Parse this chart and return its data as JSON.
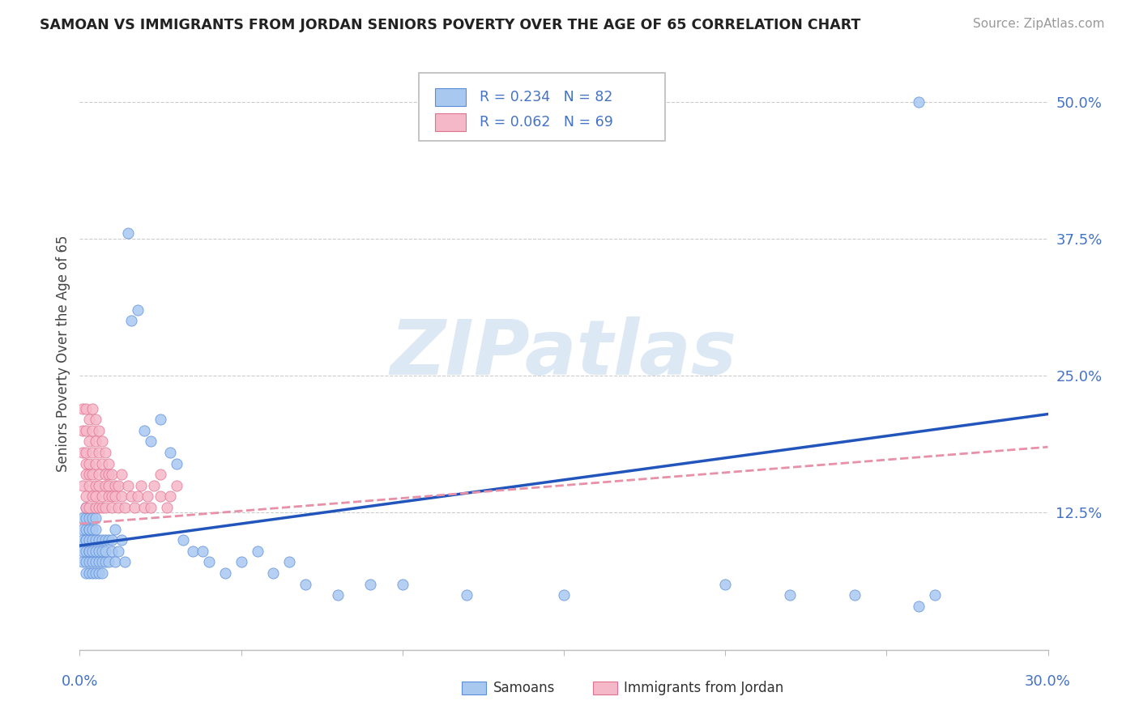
{
  "title": "SAMOAN VS IMMIGRANTS FROM JORDAN SENIORS POVERTY OVER THE AGE OF 65 CORRELATION CHART",
  "source": "Source: ZipAtlas.com",
  "ylabel": "Seniors Poverty Over the Age of 65",
  "yticks": [
    0.0,
    0.125,
    0.25,
    0.375,
    0.5
  ],
  "ytick_labels": [
    "",
    "12.5%",
    "25.0%",
    "37.5%",
    "50.0%"
  ],
  "xlim": [
    0.0,
    0.3
  ],
  "ylim": [
    0.0,
    0.54
  ],
  "legend_R1": "R = 0.234",
  "legend_N1": "N = 82",
  "legend_R2": "R = 0.062",
  "legend_N2": "N = 69",
  "color_samoan": "#a8c8f0",
  "color_jordan": "#f5b8c8",
  "color_samoan_edge": "#5b8dd9",
  "color_jordan_edge": "#e07090",
  "color_samoan_line": "#2255bb",
  "color_jordan_line": "#e890a8",
  "color_axis_text": "#4472c4",
  "color_title": "#222222",
  "color_source": "#999999",
  "color_grid": "#cccccc",
  "watermark_text": "ZIPatlas",
  "watermark_color": "#dde8f5",
  "samoan_x": [
    0.001,
    0.001,
    0.001,
    0.001,
    0.001,
    0.002,
    0.002,
    0.002,
    0.002,
    0.002,
    0.002,
    0.002,
    0.002,
    0.003,
    0.003,
    0.003,
    0.003,
    0.003,
    0.003,
    0.003,
    0.003,
    0.004,
    0.004,
    0.004,
    0.004,
    0.004,
    0.004,
    0.005,
    0.005,
    0.005,
    0.005,
    0.005,
    0.005,
    0.006,
    0.006,
    0.006,
    0.006,
    0.007,
    0.007,
    0.007,
    0.007,
    0.008,
    0.008,
    0.008,
    0.009,
    0.009,
    0.01,
    0.01,
    0.011,
    0.011,
    0.012,
    0.013,
    0.014,
    0.015,
    0.016,
    0.018,
    0.02,
    0.022,
    0.025,
    0.028,
    0.03,
    0.032,
    0.035,
    0.038,
    0.04,
    0.045,
    0.05,
    0.055,
    0.06,
    0.065,
    0.07,
    0.08,
    0.09,
    0.1,
    0.12,
    0.15,
    0.2,
    0.22,
    0.24,
    0.26,
    0.265,
    0.26
  ],
  "samoan_y": [
    0.08,
    0.1,
    0.12,
    0.09,
    0.11,
    0.07,
    0.1,
    0.12,
    0.08,
    0.09,
    0.11,
    0.13,
    0.1,
    0.07,
    0.09,
    0.11,
    0.08,
    0.1,
    0.12,
    0.09,
    0.11,
    0.08,
    0.1,
    0.07,
    0.12,
    0.09,
    0.11,
    0.08,
    0.1,
    0.07,
    0.09,
    0.11,
    0.12,
    0.08,
    0.1,
    0.09,
    0.07,
    0.08,
    0.1,
    0.09,
    0.07,
    0.1,
    0.08,
    0.09,
    0.1,
    0.08,
    0.1,
    0.09,
    0.11,
    0.08,
    0.09,
    0.1,
    0.08,
    0.38,
    0.3,
    0.31,
    0.2,
    0.19,
    0.21,
    0.18,
    0.17,
    0.1,
    0.09,
    0.09,
    0.08,
    0.07,
    0.08,
    0.09,
    0.07,
    0.08,
    0.06,
    0.05,
    0.06,
    0.06,
    0.05,
    0.05,
    0.06,
    0.05,
    0.05,
    0.04,
    0.05,
    0.5
  ],
  "jordan_x": [
    0.001,
    0.001,
    0.001,
    0.001,
    0.002,
    0.002,
    0.002,
    0.002,
    0.002,
    0.002,
    0.002,
    0.003,
    0.003,
    0.003,
    0.003,
    0.003,
    0.003,
    0.004,
    0.004,
    0.004,
    0.004,
    0.004,
    0.005,
    0.005,
    0.005,
    0.005,
    0.005,
    0.005,
    0.006,
    0.006,
    0.006,
    0.006,
    0.006,
    0.007,
    0.007,
    0.007,
    0.007,
    0.008,
    0.008,
    0.008,
    0.008,
    0.009,
    0.009,
    0.009,
    0.009,
    0.01,
    0.01,
    0.01,
    0.011,
    0.011,
    0.012,
    0.012,
    0.013,
    0.013,
    0.014,
    0.015,
    0.016,
    0.017,
    0.018,
    0.019,
    0.02,
    0.021,
    0.022,
    0.023,
    0.025,
    0.025,
    0.027,
    0.028,
    0.03
  ],
  "jordan_y": [
    0.2,
    0.22,
    0.15,
    0.18,
    0.17,
    0.14,
    0.2,
    0.16,
    0.22,
    0.13,
    0.18,
    0.15,
    0.19,
    0.13,
    0.17,
    0.21,
    0.16,
    0.14,
    0.18,
    0.2,
    0.16,
    0.22,
    0.13,
    0.17,
    0.15,
    0.19,
    0.21,
    0.14,
    0.16,
    0.18,
    0.2,
    0.13,
    0.15,
    0.14,
    0.17,
    0.19,
    0.13,
    0.15,
    0.16,
    0.18,
    0.13,
    0.15,
    0.17,
    0.14,
    0.16,
    0.14,
    0.16,
    0.13,
    0.15,
    0.14,
    0.13,
    0.15,
    0.14,
    0.16,
    0.13,
    0.15,
    0.14,
    0.13,
    0.14,
    0.15,
    0.13,
    0.14,
    0.13,
    0.15,
    0.14,
    0.16,
    0.13,
    0.14,
    0.15
  ],
  "trend_samoan_x0": 0.0,
  "trend_samoan_y0": 0.095,
  "trend_samoan_x1": 0.3,
  "trend_samoan_y1": 0.215,
  "trend_jordan_x0": 0.0,
  "trend_jordan_y0": 0.115,
  "trend_jordan_x1": 0.3,
  "trend_jordan_y1": 0.185
}
